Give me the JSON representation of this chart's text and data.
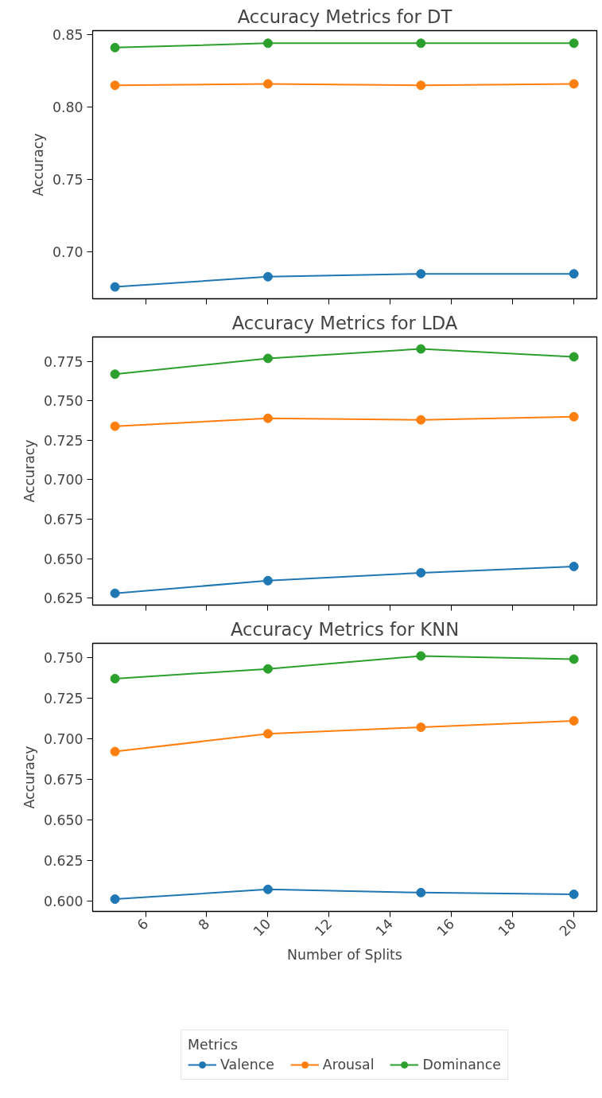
{
  "chart_data": [
    {
      "type": "line",
      "title": "Accuracy Metrics for DT",
      "ylabel": "Accuracy",
      "x": [
        5,
        10,
        15,
        20
      ],
      "xlim": [
        4.27,
        20.75
      ],
      "xticks": [
        6,
        8,
        10,
        12,
        14,
        16,
        18,
        20
      ],
      "ylim": [
        0.6678,
        0.8527
      ],
      "yticks": [
        0.85,
        {
          "value": 0.8,
          "label": "0.80"
        },
        0.75,
        {
          "value": 0.7,
          "label": "0.70"
        }
      ],
      "tick_labels": "y",
      "grid": false,
      "marker": "circle",
      "line_style": "solid",
      "series": [
        {
          "color": "#1f77b4",
          "values": [
            0.676,
            0.683,
            0.685,
            0.685
          ]
        },
        {
          "color": "#ff7f0e",
          "values": [
            0.815,
            0.816,
            0.815,
            0.816
          ]
        },
        {
          "color": "#2ca02c",
          "values": [
            0.841,
            0.844,
            0.844,
            0.844
          ]
        }
      ]
    },
    {
      "type": "line",
      "title": "Accuracy Metrics for LDA",
      "ylabel": "Accuracy",
      "x": [
        5,
        10,
        15,
        20
      ],
      "xlim": [
        4.27,
        20.75
      ],
      "xticks": [
        6,
        8,
        10,
        12,
        14,
        16,
        18,
        20
      ],
      "ylim": [
        0.6205,
        0.7906
      ],
      "yticks": [
        0.625,
        {
          "value": 0.65,
          "label": "0.650"
        },
        0.675,
        {
          "value": 0.7,
          "label": "0.700"
        },
        0.725,
        {
          "value": 0.75,
          "label": "0.750"
        },
        0.775
      ],
      "tick_labels": "y",
      "grid": false,
      "marker": "circle",
      "line_style": "solid",
      "series": [
        {
          "color": "#1f77b4",
          "values": [
            0.628,
            0.636,
            0.641,
            0.645
          ]
        },
        {
          "color": "#ff7f0e",
          "values": [
            0.734,
            0.739,
            0.738,
            0.74
          ]
        },
        {
          "color": "#2ca02c",
          "values": [
            0.767,
            0.777,
            0.783,
            0.778
          ]
        }
      ]
    },
    {
      "type": "line",
      "title": "Accuracy Metrics for KNN",
      "xlabel": "Number of Splits",
      "ylabel": "Accuracy",
      "legend_title": "Metrics",
      "legend": "bottom",
      "x": [
        5,
        10,
        15,
        20
      ],
      "xlim": [
        4.27,
        20.75
      ],
      "xticks": [
        6,
        8,
        10,
        12,
        14,
        16,
        18,
        20
      ],
      "ylim": [
        0.5934,
        0.7588
      ],
      "yticks": [
        {
          "value": 0.6,
          "label": "0.600"
        },
        0.625,
        {
          "value": 0.65,
          "label": "0.650"
        },
        0.675,
        {
          "value": 0.7,
          "label": "0.700"
        },
        0.725,
        {
          "value": 0.75,
          "label": "0.750"
        }
      ],
      "grid": false,
      "marker": "circle",
      "line_style": "solid",
      "series": [
        {
          "name": "Valence",
          "color": "#1f77b4",
          "values": [
            0.601,
            0.607,
            0.605,
            0.604
          ]
        },
        {
          "name": "Arousal",
          "color": "#ff7f0e",
          "values": [
            0.692,
            0.703,
            0.707,
            0.711
          ]
        },
        {
          "name": "Dominance",
          "color": "#2ca02c",
          "values": [
            0.737,
            0.743,
            0.751,
            0.749
          ]
        }
      ]
    }
  ]
}
